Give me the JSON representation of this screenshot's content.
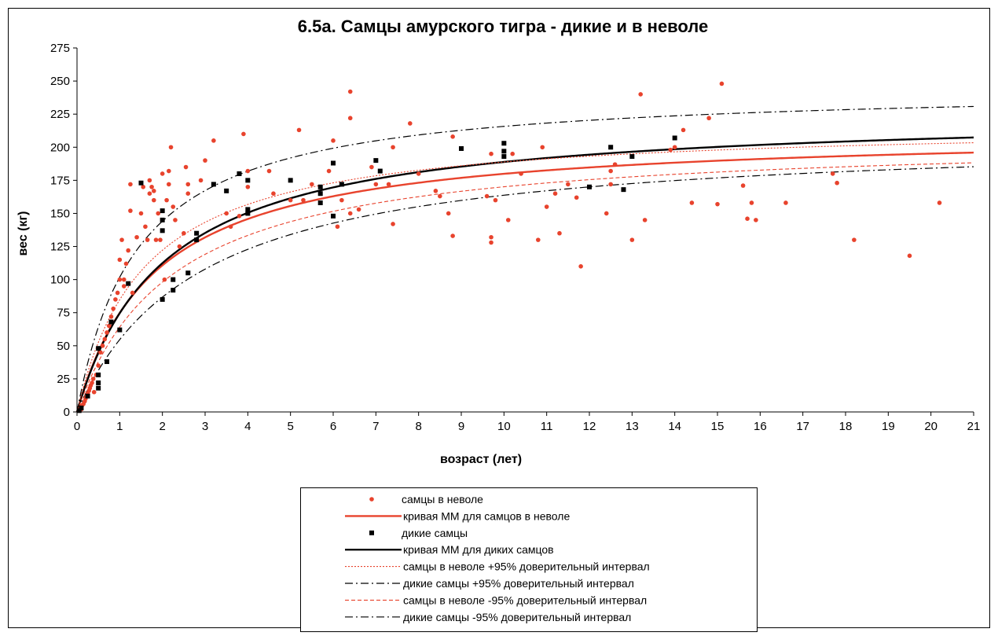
{
  "chart_data": {
    "type": "scatter",
    "title": "6.5а. Самцы амурского тигра - дикие и в неволе",
    "xlabel": "возраст (лет)",
    "ylabel": "вес (кг)",
    "xlim": [
      0,
      21
    ],
    "ylim": [
      0,
      275
    ],
    "x_ticks": [
      "0",
      "1",
      "2",
      "3",
      "4",
      "5",
      "6",
      "7",
      "8",
      "9",
      "10",
      "11",
      "12",
      "13",
      "14",
      "15",
      "16",
      "17",
      "18",
      "19",
      "20",
      "21"
    ],
    "y_ticks": [
      "0",
      "25",
      "50",
      "75",
      "100",
      "125",
      "150",
      "175",
      "200",
      "225",
      "250",
      "275"
    ],
    "grid": false,
    "legend_position": "bottom-center",
    "series": [
      {
        "name": "самцы в неволе",
        "kind": "points",
        "marker": "dot",
        "color": "#e8432d",
        "points": [
          [
            0.05,
            1
          ],
          [
            0.08,
            3
          ],
          [
            0.1,
            2
          ],
          [
            0.12,
            5
          ],
          [
            0.15,
            6
          ],
          [
            0.18,
            8
          ],
          [
            0.2,
            10
          ],
          [
            0.22,
            12
          ],
          [
            0.25,
            14
          ],
          [
            0.28,
            16
          ],
          [
            0.3,
            18
          ],
          [
            0.32,
            20
          ],
          [
            0.35,
            22
          ],
          [
            0.38,
            25
          ],
          [
            0.4,
            15
          ],
          [
            0.45,
            28
          ],
          [
            0.5,
            35
          ],
          [
            0.55,
            45
          ],
          [
            0.6,
            50
          ],
          [
            0.65,
            55
          ],
          [
            0.7,
            60
          ],
          [
            0.75,
            65
          ],
          [
            0.8,
            72
          ],
          [
            0.85,
            78
          ],
          [
            0.9,
            85
          ],
          [
            0.95,
            90
          ],
          [
            1.0,
            100
          ],
          [
            1.0,
            115
          ],
          [
            1.05,
            130
          ],
          [
            1.1,
            100
          ],
          [
            1.1,
            95
          ],
          [
            1.15,
            112
          ],
          [
            1.2,
            122
          ],
          [
            1.25,
            152
          ],
          [
            1.25,
            172
          ],
          [
            1.3,
            90
          ],
          [
            1.4,
            132
          ],
          [
            1.5,
            150
          ],
          [
            1.55,
            170
          ],
          [
            1.6,
            140
          ],
          [
            1.65,
            130
          ],
          [
            1.7,
            165
          ],
          [
            1.7,
            175
          ],
          [
            1.75,
            170
          ],
          [
            1.8,
            160
          ],
          [
            1.8,
            167
          ],
          [
            1.85,
            130
          ],
          [
            1.9,
            150
          ],
          [
            1.95,
            130
          ],
          [
            2.0,
            145
          ],
          [
            2.0,
            180
          ],
          [
            2.05,
            100
          ],
          [
            2.1,
            160
          ],
          [
            2.15,
            182
          ],
          [
            2.15,
            172
          ],
          [
            2.2,
            200
          ],
          [
            2.25,
            155
          ],
          [
            2.3,
            145
          ],
          [
            2.4,
            125
          ],
          [
            2.5,
            135
          ],
          [
            2.55,
            185
          ],
          [
            2.6,
            165
          ],
          [
            2.6,
            172
          ],
          [
            2.9,
            175
          ],
          [
            3.0,
            190
          ],
          [
            3.2,
            205
          ],
          [
            3.5,
            150
          ],
          [
            3.6,
            140
          ],
          [
            3.8,
            148
          ],
          [
            3.9,
            210
          ],
          [
            4.0,
            182
          ],
          [
            4.0,
            170
          ],
          [
            4.5,
            182
          ],
          [
            4.6,
            165
          ],
          [
            5.0,
            160
          ],
          [
            5.2,
            213
          ],
          [
            5.3,
            160
          ],
          [
            5.5,
            172
          ],
          [
            5.9,
            182
          ],
          [
            6.0,
            205
          ],
          [
            6.1,
            140
          ],
          [
            6.2,
            160
          ],
          [
            6.4,
            242
          ],
          [
            6.4,
            222
          ],
          [
            6.4,
            150
          ],
          [
            6.6,
            153
          ],
          [
            6.9,
            185
          ],
          [
            7.0,
            172
          ],
          [
            7.3,
            172
          ],
          [
            7.4,
            200
          ],
          [
            7.4,
            142
          ],
          [
            7.8,
            218
          ],
          [
            8.0,
            180
          ],
          [
            8.4,
            167
          ],
          [
            8.5,
            163
          ],
          [
            8.7,
            150
          ],
          [
            8.8,
            133
          ],
          [
            8.8,
            208
          ],
          [
            9.6,
            163
          ],
          [
            9.7,
            128
          ],
          [
            9.7,
            195
          ],
          [
            9.7,
            132
          ],
          [
            9.8,
            160
          ],
          [
            10.1,
            145
          ],
          [
            10.2,
            195
          ],
          [
            10.4,
            180
          ],
          [
            10.8,
            130
          ],
          [
            10.9,
            200
          ],
          [
            11.0,
            155
          ],
          [
            11.2,
            165
          ],
          [
            11.3,
            135
          ],
          [
            11.5,
            172
          ],
          [
            11.7,
            162
          ],
          [
            11.8,
            110
          ],
          [
            12.4,
            150
          ],
          [
            12.5,
            182
          ],
          [
            12.5,
            172
          ],
          [
            12.6,
            187
          ],
          [
            13.0,
            130
          ],
          [
            13.2,
            240
          ],
          [
            13.3,
            145
          ],
          [
            13.9,
            198
          ],
          [
            14.0,
            200
          ],
          [
            14.2,
            213
          ],
          [
            14.4,
            158
          ],
          [
            14.8,
            222
          ],
          [
            15.0,
            157
          ],
          [
            15.1,
            248
          ],
          [
            15.6,
            171
          ],
          [
            15.7,
            146
          ],
          [
            15.8,
            158
          ],
          [
            15.9,
            145
          ],
          [
            16.6,
            158
          ],
          [
            17.7,
            180
          ],
          [
            17.8,
            173
          ],
          [
            18.2,
            130
          ],
          [
            19.5,
            118
          ],
          [
            20.2,
            158
          ]
        ]
      },
      {
        "name": "кривая ММ для самцов в неволе",
        "kind": "curve",
        "style": "thick-red",
        "color": "#e8432d",
        "vmax": 213.2,
        "km": 1.85
      },
      {
        "name": "дикие самцы",
        "kind": "points",
        "marker": "square",
        "color": "#000000",
        "points": [
          [
            0.05,
            1
          ],
          [
            0.1,
            3
          ],
          [
            0.25,
            12
          ],
          [
            0.5,
            18
          ],
          [
            0.5,
            22
          ],
          [
            0.5,
            28
          ],
          [
            0.5,
            48
          ],
          [
            0.7,
            38
          ],
          [
            0.8,
            68
          ],
          [
            1.0,
            62
          ],
          [
            1.2,
            97
          ],
          [
            1.5,
            173
          ],
          [
            2.0,
            152
          ],
          [
            2.0,
            145
          ],
          [
            2.0,
            137
          ],
          [
            2.0,
            85
          ],
          [
            2.25,
            100
          ],
          [
            2.25,
            92
          ],
          [
            2.6,
            105
          ],
          [
            2.8,
            130
          ],
          [
            2.8,
            135
          ],
          [
            3.2,
            172
          ],
          [
            3.5,
            167
          ],
          [
            3.8,
            180
          ],
          [
            4.0,
            175
          ],
          [
            4.0,
            150
          ],
          [
            4.0,
            153
          ],
          [
            5.0,
            175
          ],
          [
            5.7,
            165
          ],
          [
            5.7,
            158
          ],
          [
            5.7,
            170
          ],
          [
            6.0,
            188
          ],
          [
            6.0,
            148
          ],
          [
            6.2,
            172
          ],
          [
            7.0,
            190
          ],
          [
            7.1,
            182
          ],
          [
            9.0,
            199
          ],
          [
            10.0,
            203
          ],
          [
            10.0,
            193
          ],
          [
            10.0,
            197
          ],
          [
            12.0,
            170
          ],
          [
            12.5,
            200
          ],
          [
            12.8,
            168
          ],
          [
            13.0,
            193
          ],
          [
            14.0,
            207
          ]
        ]
      },
      {
        "name": "кривая ММ для диких самцов",
        "kind": "curve",
        "style": "thick-black",
        "color": "#000000",
        "vmax": 227.6,
        "km": 2.05
      },
      {
        "name": "самцы в неволе +95% доверительный интервал",
        "kind": "curve",
        "style": "dotted-red",
        "color": "#e8432d",
        "vmax": 218.7,
        "km": 1.58
      },
      {
        "name": "дикие самцы +95% доверительный интервал",
        "kind": "curve",
        "style": "dashdot-black",
        "color": "#000000",
        "vmax": 246.4,
        "km": 1.42
      },
      {
        "name": "самцы в неволе -95% доверительный интервал",
        "kind": "curve",
        "style": "dashed-red",
        "color": "#e8432d",
        "vmax": 208.4,
        "km": 2.25
      },
      {
        "name": "дикие самцы -95% доверительный интервал",
        "kind": "curve",
        "style": "dashdot-black",
        "color": "#000000",
        "vmax": 210.4,
        "km": 2.85
      }
    ]
  }
}
